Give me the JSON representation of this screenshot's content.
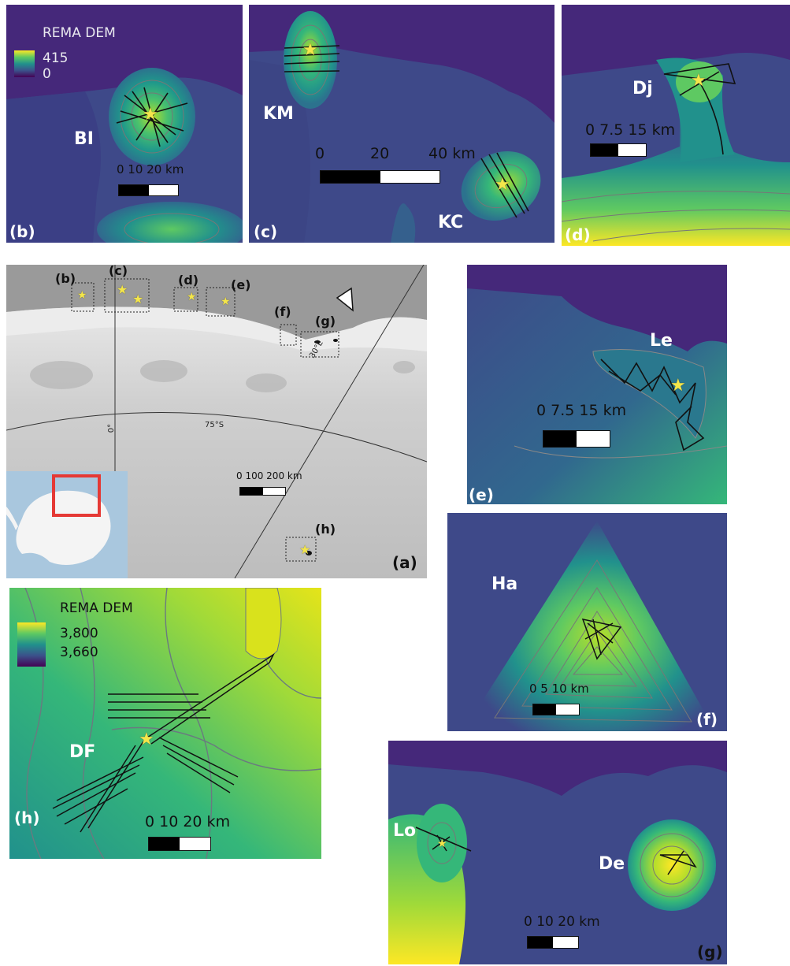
{
  "legend_top": {
    "title": "REMA DEM",
    "max": "415",
    "min": "0"
  },
  "legend_h": {
    "title": "REMA DEM",
    "max": "3,800",
    "min": "3,660"
  },
  "panels": {
    "b": {
      "tag": "(b)",
      "site": "BI",
      "scale": "0   10  20 km"
    },
    "c": {
      "tag": "(c)",
      "site1": "KM",
      "site2": "KC",
      "scale0": "0",
      "scale1": "20",
      "scale2": "40 km"
    },
    "d": {
      "tag": "(d)",
      "site": "Dj",
      "scale": "0   7.5  15 km"
    },
    "e": {
      "tag": "(e)",
      "site": "Le",
      "scale": "0   7.5  15 km"
    },
    "f": {
      "tag": "(f)",
      "site": "Ha",
      "scale": "0    5   10 km"
    },
    "g": {
      "tag": "(g)",
      "site1": "Lo",
      "site2": "De",
      "scale": "0  10  20 km"
    },
    "h": {
      "tag": "(h)",
      "site": "DF",
      "scale": "0   10  20 km"
    },
    "a": {
      "tag": "(a)",
      "scale": "0   100  200 km",
      "lat": "75°S",
      "lon0": "0°",
      "lon30": "30°E",
      "boxes": [
        "(b)",
        "(c)",
        "(d)",
        "(e)",
        "(f)",
        "(g)",
        "(h)"
      ]
    }
  },
  "colors": {
    "low": "#440154",
    "mid": "#21918c",
    "high": "#fde725",
    "star": "#f4e64a"
  },
  "icons": {
    "north": "north-arrow-icon",
    "star": "star-icon"
  }
}
